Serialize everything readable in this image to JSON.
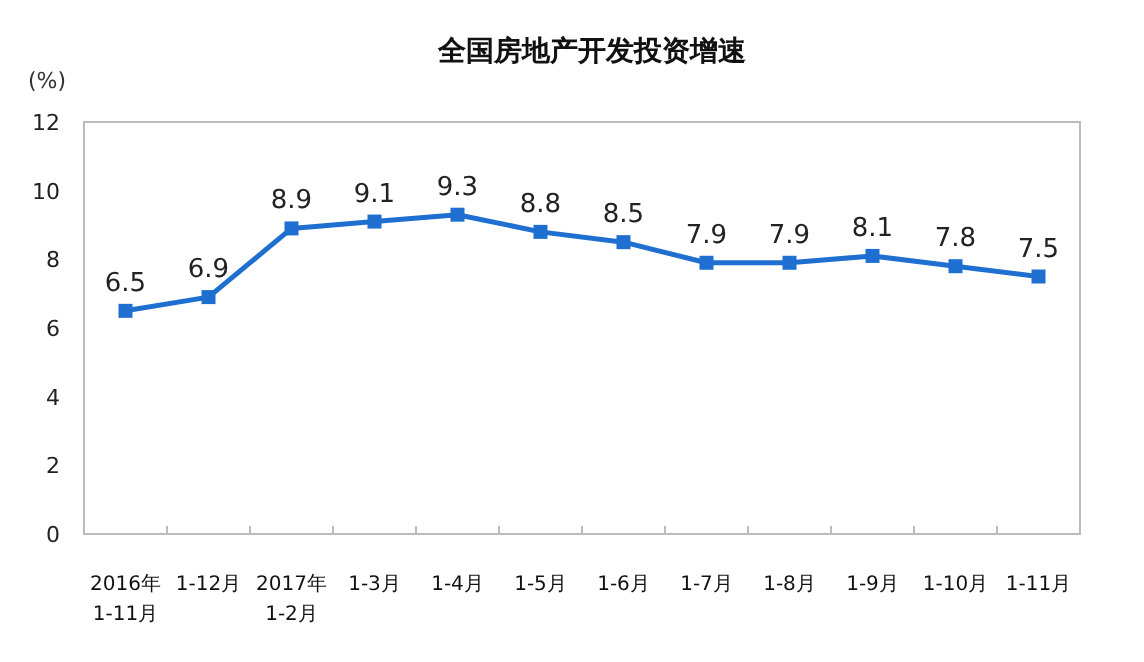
{
  "chart_data": {
    "type": "line",
    "title": "全国房地产开发投资增速",
    "ylabel": "(%)",
    "categories": [
      "2016年\n1-11月",
      "1-12月",
      "2017年\n1-2月",
      "1-3月",
      "1-4月",
      "1-5月",
      "1-6月",
      "1-7月",
      "1-8月",
      "1-9月",
      "1-10月",
      "1-11月"
    ],
    "series": [
      {
        "color": "#1f6fd1",
        "values": [
          6.5,
          6.9,
          8.9,
          9.1,
          9.3,
          8.8,
          8.5,
          7.9,
          7.9,
          8.1,
          7.8,
          7.5
        ]
      }
    ],
    "ylim": [
      0,
      12
    ],
    "yticks": [
      0,
      2,
      4,
      6,
      8,
      10,
      12
    ],
    "grid": false,
    "marker": "square",
    "line_style": "solid",
    "data_labels": true
  }
}
